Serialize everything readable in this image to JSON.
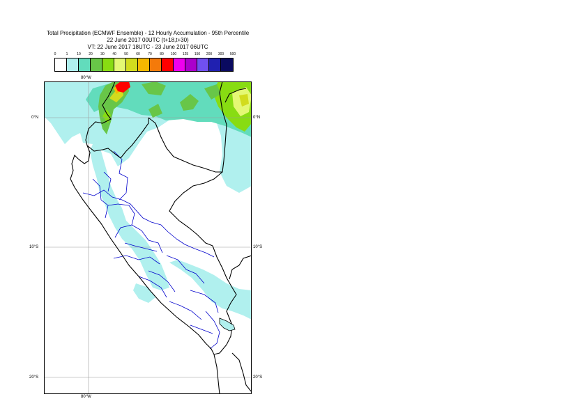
{
  "title": {
    "line1": "Total Precipitation (ECMWF Ensemble) - 12 Hourly Accumulation - 95th Percentile",
    "line2": "22 June 2017 00UTC (t+18,t+30)",
    "line3": "VT: 22 June 2017 18UTC - 23 June 2017 06UTC"
  },
  "legend": {
    "ticks": [
      "0",
      "1",
      "10",
      "20",
      "30",
      "40",
      "50",
      "60",
      "70",
      "80",
      "100",
      "125",
      "150",
      "200",
      "300",
      "500"
    ],
    "colors": [
      "#ffffff",
      "#b0f0ee",
      "#62dcbc",
      "#68c648",
      "#88dc12",
      "#e4f874",
      "#d2dc1e",
      "#f6b800",
      "#f47a0a",
      "#ff0000",
      "#ee00ee",
      "#aa00cc",
      "#7050f0",
      "#2020b0",
      "#0a0a60"
    ]
  },
  "map": {
    "lon_labels": [
      "80°W",
      "80°W"
    ],
    "lat_labels": {
      "left": [
        "0°N",
        "10°S",
        "20°S"
      ],
      "right": [
        "0°N",
        "10°S",
        "20°S"
      ]
    }
  }
}
